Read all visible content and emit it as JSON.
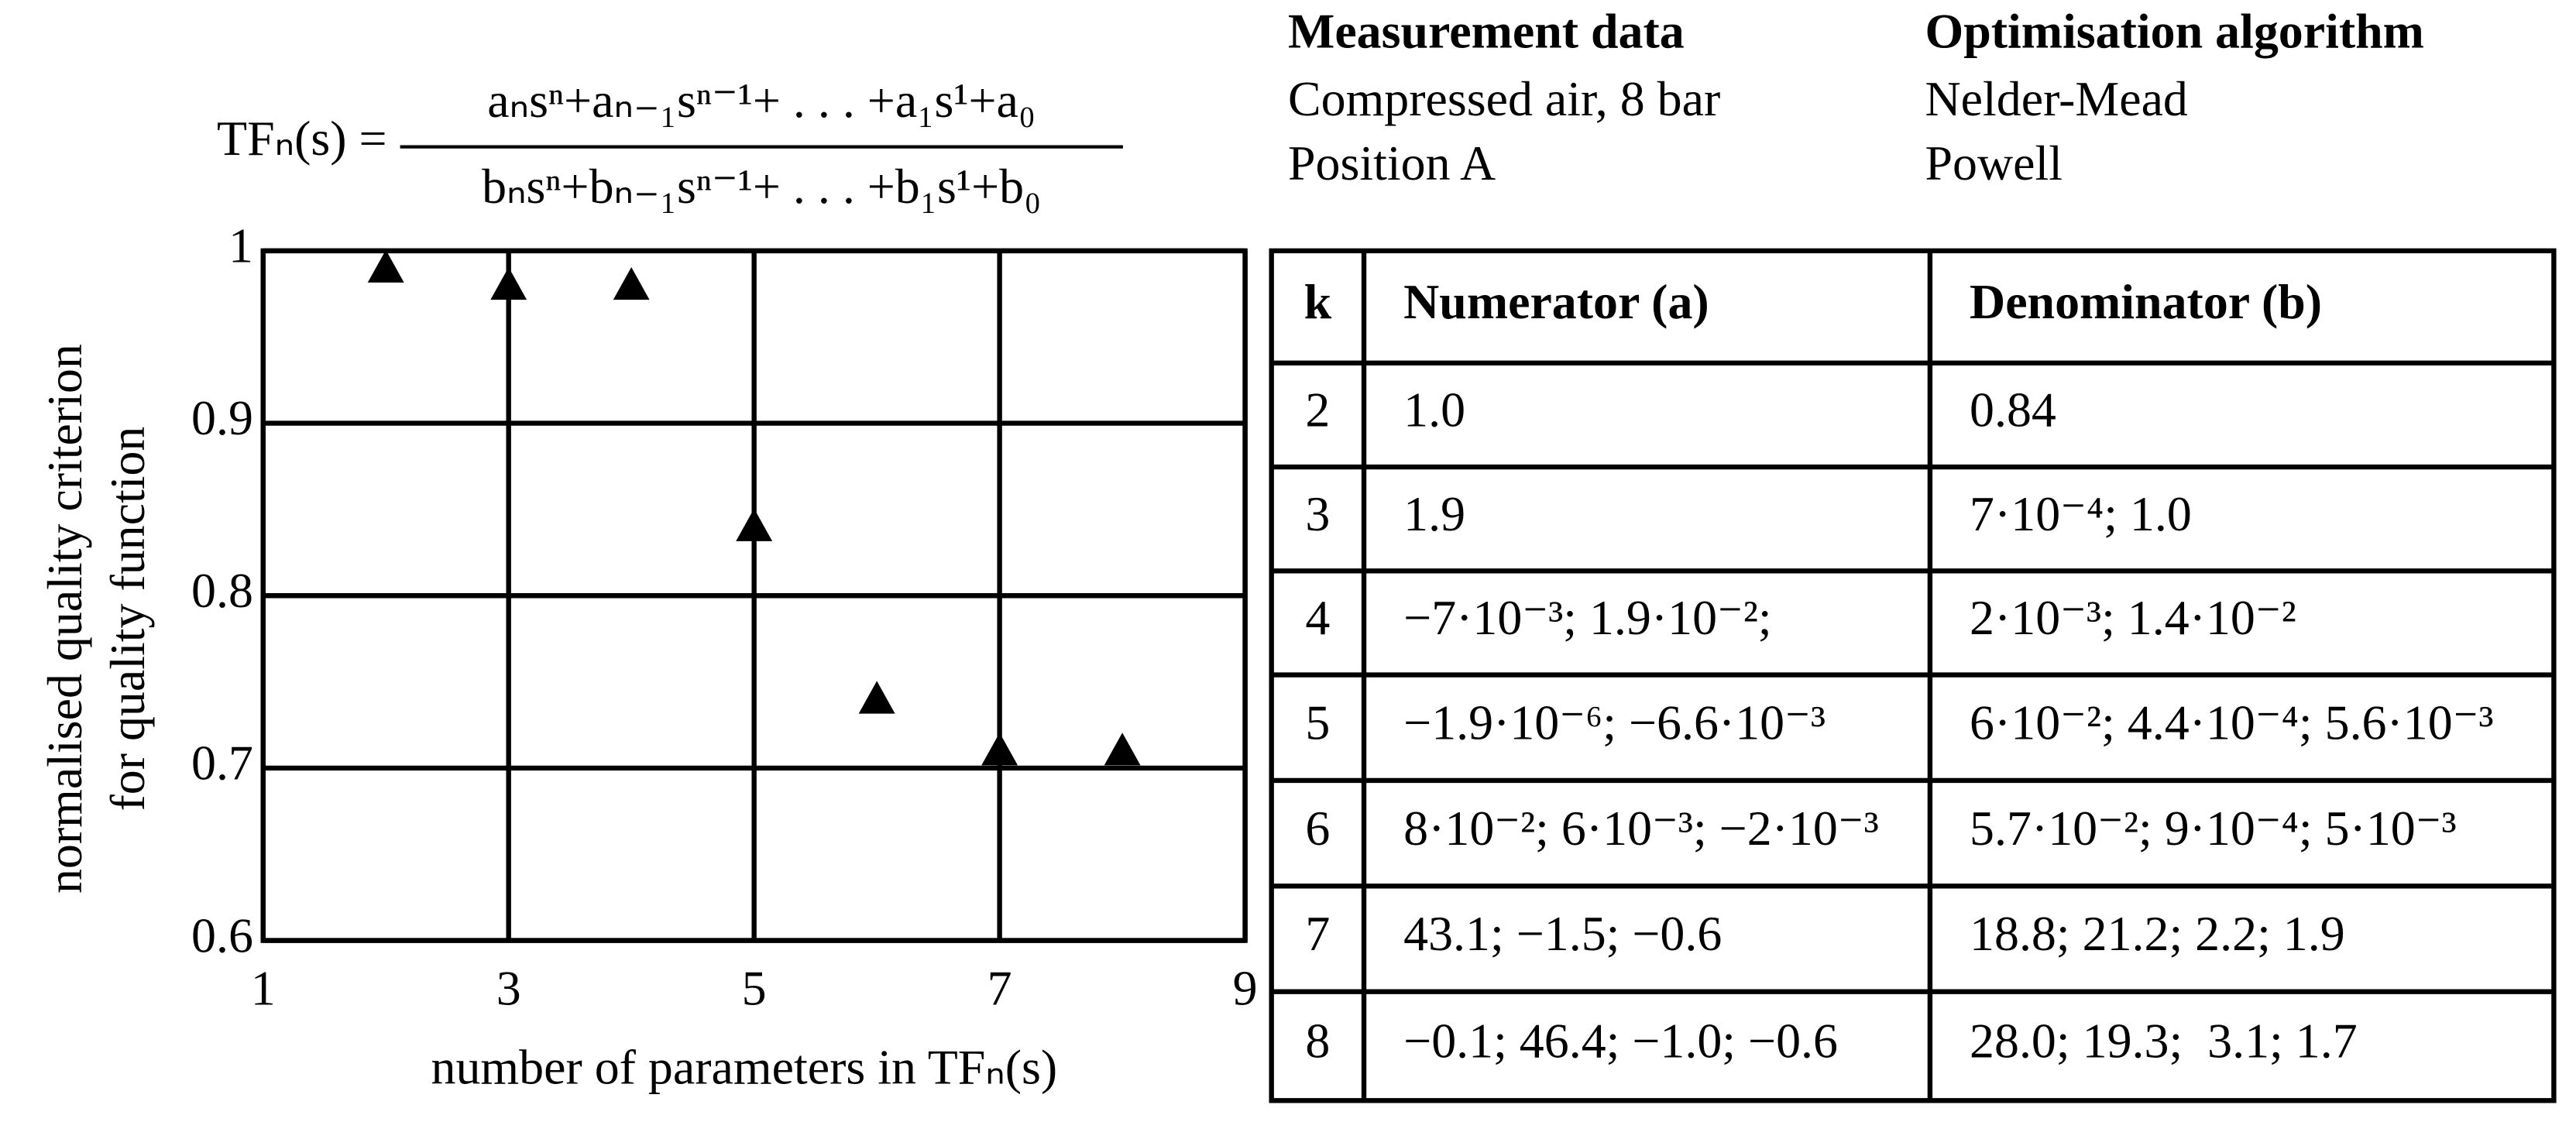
{
  "formula": {
    "lhs": "TFₙ(s) =",
    "numerator": "aₙsⁿ+aₙ₋₁sⁿ⁻¹+ . . . +a₁s¹+a₀",
    "denominator": "bₙsⁿ+bₙ₋₁sⁿ⁻¹+ . . . +b₁s¹+b₀"
  },
  "info": [
    {
      "heading": "Measurement data",
      "lines": [
        "Compressed air, 8 bar",
        "Position A"
      ]
    },
    {
      "heading": "Optimisation algorithm",
      "lines": [
        "Nelder-Mead",
        "Powell"
      ]
    }
  ],
  "chart_data": {
    "type": "scatter",
    "x_label": "number of parameters in TFₙ(s)",
    "y_label": [
      "normalised quality criterion",
      "for quality function"
    ],
    "x": [
      2,
      3,
      4,
      5,
      6,
      7,
      8
    ],
    "values": [
      0.99,
      0.98,
      0.98,
      0.84,
      0.74,
      0.71,
      0.71
    ],
    "color": "#000000",
    "marker": "triangle",
    "xlim": [
      1,
      9
    ],
    "xticks": [
      1,
      3,
      5,
      7,
      9
    ],
    "ylim": [
      0.6,
      1
    ],
    "yticks": [
      0.6,
      0.7,
      0.8,
      0.9,
      1
    ],
    "grid": true
  },
  "table": {
    "header": [
      "k",
      "Numerator (a)",
      "Denominator (b)"
    ],
    "rows": [
      [
        "2",
        "1.0",
        "0.84"
      ],
      [
        "3",
        "1.9",
        "7·10⁻⁴; 1.0"
      ],
      [
        "4",
        "−7·10⁻³; 1.9·10⁻²;",
        "2·10⁻³; 1.4·10⁻²"
      ],
      [
        "5",
        "−1.9·10⁻⁶; −6.6·10⁻³",
        "6·10⁻²; 4.4·10⁻⁴; 5.6·10⁻³"
      ],
      [
        "6",
        "8·10⁻²; 6·10⁻³; −2·10⁻³",
        "5.7·10⁻²; 9·10⁻⁴; 5·10⁻³"
      ],
      [
        "7",
        "43.1; −1.5; −0.6",
        "18.8; 21.2; 2.2; 1.9"
      ],
      [
        "8",
        "−0.1; 46.4; −1.0; −0.6",
        "28.0; 19.3;  3.1; 1.7"
      ]
    ]
  }
}
